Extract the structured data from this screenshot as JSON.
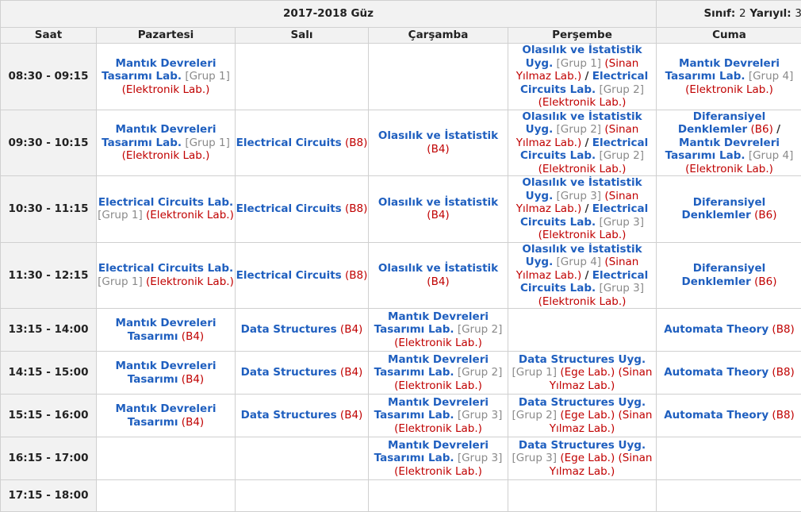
{
  "header": {
    "term": "2017-2018 Güz",
    "class_label": "Sınıf:",
    "class_value": "2",
    "semester_label": "Yarıyıl:",
    "semester_value": "3"
  },
  "columns": [
    "Saat",
    "Pazartesi",
    "Salı",
    "Çarşamba",
    "Perşembe",
    "Cuma"
  ],
  "rows": [
    {
      "time": "08:30 - 09:15",
      "cells": [
        [
          {
            "course": "Mantık Devreleri Tasarımı Lab.",
            "group": "[Grup 1]",
            "room": "(Elektronik Lab.)"
          }
        ],
        [],
        [],
        [
          {
            "course": "Olasılık ve İstatistik Uyg.",
            "group": "[Grup 1]",
            "room": "(Sinan Yılmaz Lab.)"
          },
          {
            "course": "Electrical Circuits Lab.",
            "group": "[Grup 2]",
            "room": "(Elektronik Lab.)"
          }
        ],
        [
          {
            "course": "Mantık Devreleri Tasarımı Lab.",
            "group": "[Grup 4]",
            "room": "(Elektronik Lab.)"
          }
        ]
      ]
    },
    {
      "time": "09:30 - 10:15",
      "cells": [
        [
          {
            "course": "Mantık Devreleri Tasarımı Lab.",
            "group": "[Grup 1]",
            "room": "(Elektronik Lab.)"
          }
        ],
        [
          {
            "course": "Electrical Circuits",
            "room": "(B8)"
          }
        ],
        [
          {
            "course": "Olasılık ve İstatistik",
            "room": "(B4)"
          }
        ],
        [
          {
            "course": "Olasılık ve İstatistik Uyg.",
            "group": "[Grup 2]",
            "room": "(Sinan Yılmaz Lab.)"
          },
          {
            "course": "Electrical Circuits Lab.",
            "group": "[Grup 2]",
            "room": "(Elektronik Lab.)"
          }
        ],
        [
          {
            "course": "Diferansiyel Denklemler",
            "room": "(B6)"
          },
          {
            "course": "Mantık Devreleri Tasarımı Lab.",
            "group": "[Grup 4]",
            "room": "(Elektronik Lab.)"
          }
        ]
      ]
    },
    {
      "time": "10:30 - 11:15",
      "cells": [
        [
          {
            "course": "Electrical Circuits Lab.",
            "group": "[Grup 1]",
            "room": "(Elektronik Lab.)"
          }
        ],
        [
          {
            "course": "Electrical Circuits",
            "room": "(B8)"
          }
        ],
        [
          {
            "course": "Olasılık ve İstatistik",
            "room": "(B4)"
          }
        ],
        [
          {
            "course": "Olasılık ve İstatistik Uyg.",
            "group": "[Grup 3]",
            "room": "(Sinan Yılmaz Lab.)"
          },
          {
            "course": "Electrical Circuits Lab.",
            "group": "[Grup 3]",
            "room": "(Elektronik Lab.)"
          }
        ],
        [
          {
            "course": "Diferansiyel Denklemler",
            "room": "(B6)"
          }
        ]
      ]
    },
    {
      "time": "11:30 - 12:15",
      "cells": [
        [
          {
            "course": "Electrical Circuits Lab.",
            "group": "[Grup 1]",
            "room": "(Elektronik Lab.)"
          }
        ],
        [
          {
            "course": "Electrical Circuits",
            "room": "(B8)"
          }
        ],
        [
          {
            "course": "Olasılık ve İstatistik",
            "room": "(B4)"
          }
        ],
        [
          {
            "course": "Olasılık ve İstatistik Uyg.",
            "group": "[Grup 4]",
            "room": "(Sinan Yılmaz Lab.)"
          },
          {
            "course": "Electrical Circuits Lab.",
            "group": "[Grup 3]",
            "room": "(Elektronik Lab.)"
          }
        ],
        [
          {
            "course": "Diferansiyel Denklemler",
            "room": "(B6)"
          }
        ]
      ]
    },
    {
      "time": "13:15 - 14:00",
      "cells": [
        [
          {
            "course": "Mantık Devreleri Tasarımı",
            "room": "(B4)"
          }
        ],
        [
          {
            "course": "Data Structures",
            "room": "(B4)"
          }
        ],
        [
          {
            "course": "Mantık Devreleri Tasarımı Lab.",
            "group": "[Grup 2]",
            "room": "(Elektronik Lab.)"
          }
        ],
        [],
        [
          {
            "course": "Automata Theory",
            "room": "(B8)"
          }
        ]
      ]
    },
    {
      "time": "14:15 - 15:00",
      "cells": [
        [
          {
            "course": "Mantık Devreleri Tasarımı",
            "room": "(B4)"
          }
        ],
        [
          {
            "course": "Data Structures",
            "room": "(B4)"
          }
        ],
        [
          {
            "course": "Mantık Devreleri Tasarımı Lab.",
            "group": "[Grup 2]",
            "room": "(Elektronik Lab.)"
          }
        ],
        [
          {
            "course": "Data Structures Uyg.",
            "group": "[Grup 1]",
            "room": "(Ege Lab.) (Sinan Yılmaz Lab.)"
          }
        ],
        [
          {
            "course": "Automata Theory",
            "room": "(B8)"
          }
        ]
      ]
    },
    {
      "time": "15:15 - 16:00",
      "cells": [
        [
          {
            "course": "Mantık Devreleri Tasarımı",
            "room": "(B4)"
          }
        ],
        [
          {
            "course": "Data Structures",
            "room": "(B4)"
          }
        ],
        [
          {
            "course": "Mantık Devreleri Tasarımı Lab.",
            "group": "[Grup 3]",
            "room": "(Elektronik Lab.)"
          }
        ],
        [
          {
            "course": "Data Structures Uyg.",
            "group": "[Grup 2]",
            "room": "(Ege Lab.) (Sinan Yılmaz Lab.)"
          }
        ],
        [
          {
            "course": "Automata Theory",
            "room": "(B8)"
          }
        ]
      ]
    },
    {
      "time": "16:15 - 17:00",
      "cells": [
        [],
        [],
        [
          {
            "course": "Mantık Devreleri Tasarımı Lab.",
            "group": "[Grup 3]",
            "room": "(Elektronik Lab.)"
          }
        ],
        [
          {
            "course": "Data Structures Uyg.",
            "group": "[Grup 3]",
            "room": "(Ege Lab.) (Sinan Yılmaz Lab.)"
          }
        ],
        []
      ]
    },
    {
      "time": "17:15 - 18:00",
      "cells": [
        [],
        [],
        [],
        [],
        []
      ]
    }
  ],
  "separator": "/",
  "colors": {
    "course": "#1f5fbf",
    "room": "#c00000",
    "group": "#8a8a8a",
    "header_bg": "#f2f2f2",
    "border": "#d0d0d0"
  }
}
